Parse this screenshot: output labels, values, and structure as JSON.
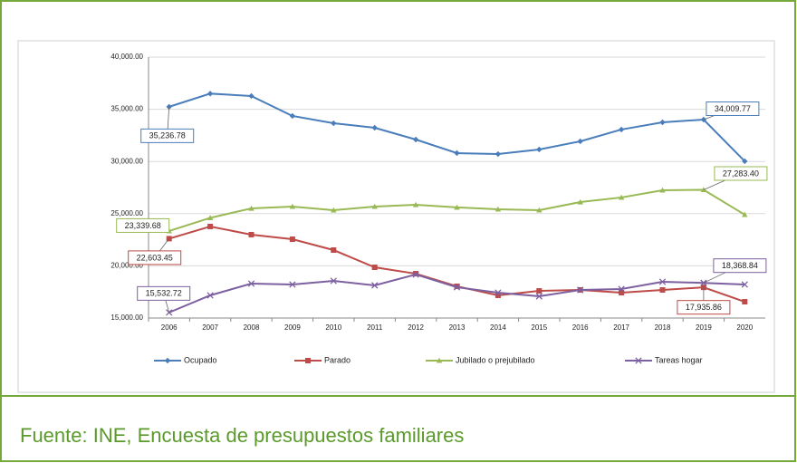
{
  "chart_data": {
    "type": "line",
    "categories": [
      "2006",
      "2007",
      "2008",
      "2009",
      "2010",
      "2011",
      "2012",
      "2013",
      "2014",
      "2015",
      "2016",
      "2017",
      "2018",
      "2019",
      "2020"
    ],
    "ylim": [
      15000,
      40000
    ],
    "yticks": [
      {
        "value": 15000,
        "label": "15,000.00"
      },
      {
        "value": 20000,
        "label": "20,000.00"
      },
      {
        "value": 25000,
        "label": "25,000.00"
      },
      {
        "value": 30000,
        "label": "30,000.00"
      },
      {
        "value": 35000,
        "label": "35,000.00"
      },
      {
        "value": 40000,
        "label": "40,000.00"
      }
    ],
    "grid": true,
    "legend": "bottom",
    "series": [
      {
        "name": "Ocupado",
        "color": "#4a7ebb",
        "marker": "diamond",
        "values": [
          35236.78,
          36500,
          36270,
          34360,
          33660,
          33230,
          32100,
          30800,
          30710,
          31150,
          31930,
          33060,
          33750,
          34009.77,
          30020
        ],
        "value_labels": [
          "35,236.78",
          null,
          null,
          null,
          null,
          null,
          null,
          null,
          null,
          null,
          null,
          null,
          null,
          "34,009.77",
          null
        ]
      },
      {
        "name": "Parado",
        "color": "#be4b48",
        "marker": "square",
        "values": [
          22603.45,
          23770,
          22990,
          22550,
          21510,
          19860,
          19250,
          18040,
          17170,
          17600,
          17690,
          17430,
          17690,
          17935.86,
          16560
        ],
        "value_labels": [
          "22,603.45",
          null,
          null,
          null,
          null,
          null,
          null,
          null,
          null,
          null,
          null,
          null,
          null,
          "17,935.86",
          null
        ]
      },
      {
        "name": "Jubilado o prejubilado",
        "color": "#98b954",
        "marker": "triangle",
        "values": [
          23339.68,
          24600,
          25500,
          25680,
          25330,
          25680,
          25850,
          25600,
          25420,
          25330,
          26110,
          26550,
          27240,
          27283.4,
          24900
        ],
        "value_labels": [
          "23,339.68",
          null,
          null,
          null,
          null,
          null,
          null,
          null,
          null,
          null,
          null,
          null,
          null,
          "27,283.40",
          null
        ]
      },
      {
        "name": "Tareas hogar",
        "color": "#7d60a0",
        "marker": "x",
        "values": [
          15532.72,
          17170,
          18300,
          18210,
          18560,
          18130,
          19170,
          17950,
          17430,
          17080,
          17690,
          17780,
          18470,
          18368.84,
          18210
        ],
        "value_labels": [
          "15,532.72",
          null,
          null,
          null,
          null,
          null,
          null,
          null,
          null,
          null,
          null,
          null,
          null,
          "18,368.84",
          null
        ]
      }
    ]
  },
  "caption": "Fuente: INE, Encuesta de presupuestos familiares"
}
